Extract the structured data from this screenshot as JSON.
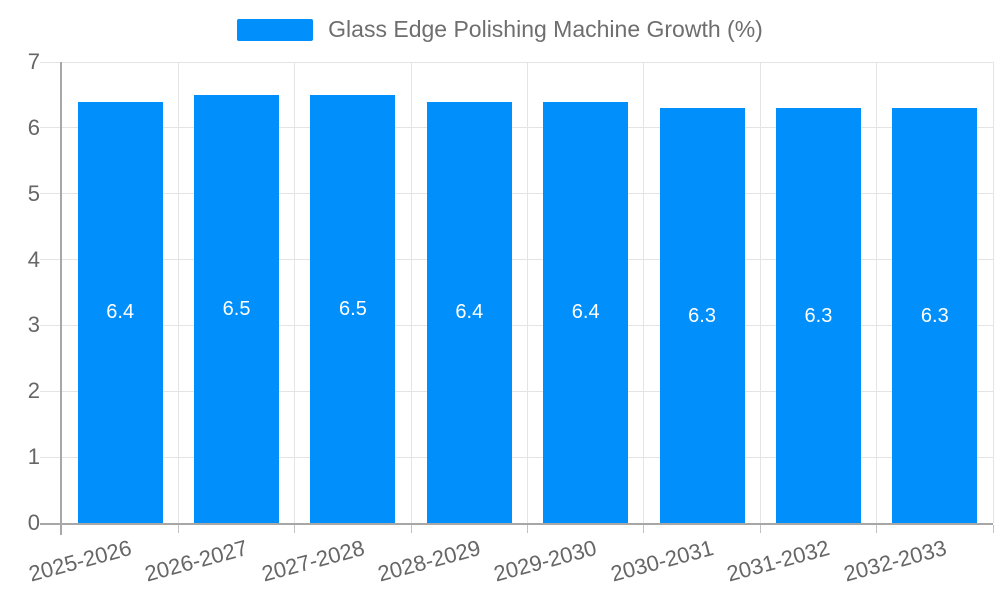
{
  "legend": {
    "label": "Glass Edge Polishing Machine Growth (%)"
  },
  "chart_data": {
    "type": "bar",
    "title": "Glass Edge Polishing Machine Growth (%)",
    "series_name": "Glass Edge Polishing Machine Growth (%)",
    "categories": [
      "2025-2026",
      "2026-2027",
      "2027-2028",
      "2028-2029",
      "2029-2030",
      "2030-2031",
      "2031-2032",
      "2032-2033"
    ],
    "values": [
      6.4,
      6.5,
      6.5,
      6.4,
      6.4,
      6.3,
      6.3,
      6.3
    ],
    "xlabel": "",
    "ylabel": "",
    "ylim": [
      0,
      7
    ],
    "yticks": [
      0,
      1,
      2,
      3,
      4,
      5,
      6,
      7
    ],
    "grid": true,
    "legend_position": "top",
    "colors": {
      "bar": "#008FFB",
      "data_label": "#ffffff",
      "axis_text": "#666666",
      "grid_line": "#e4e4e4",
      "x_tick": "#c2c2c2",
      "axis_line": "#a7a7a7",
      "background": "#ffffff"
    }
  }
}
